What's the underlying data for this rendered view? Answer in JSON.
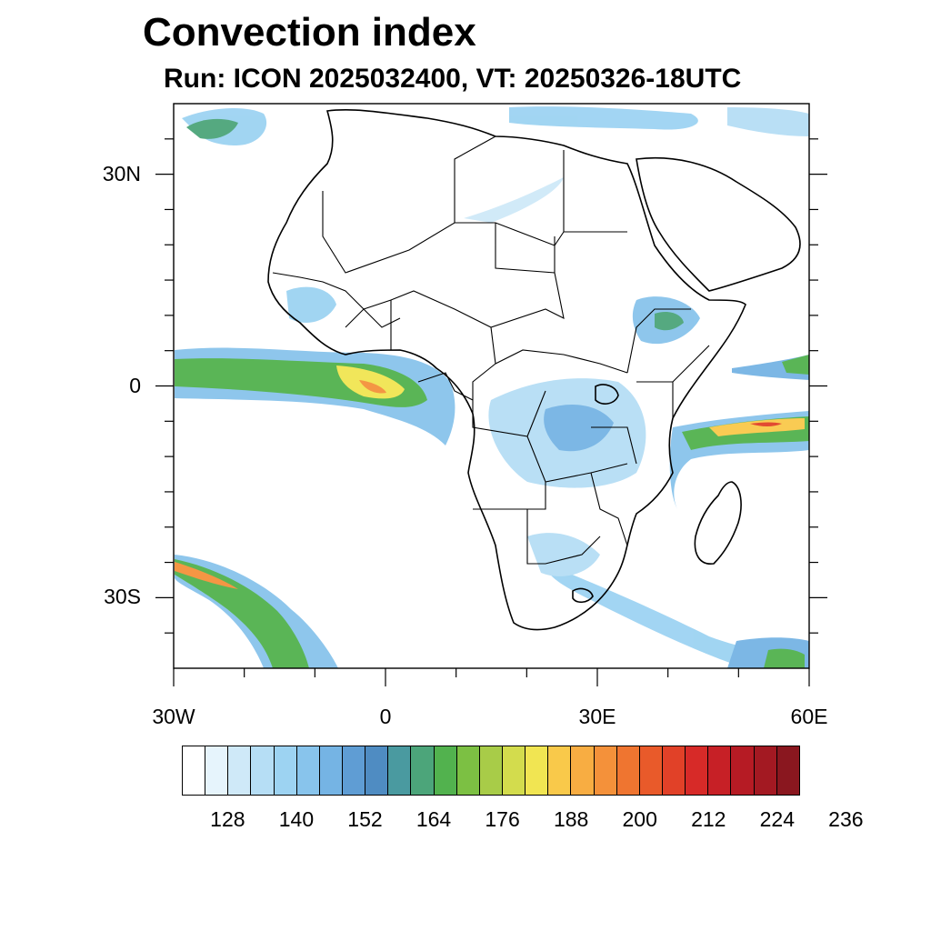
{
  "title": "Convection index",
  "subtitle": "Run: ICON 2025032400,  VT: 20250326-18UTC",
  "map": {
    "lon_range": [
      -30,
      60
    ],
    "lat_range": [
      -40,
      40
    ],
    "lat_labels": [
      {
        "lat": 30,
        "text": "30N"
      },
      {
        "lat": 0,
        "text": "0"
      },
      {
        "lat": -30,
        "text": "30S"
      }
    ],
    "lon_labels": [
      {
        "lon": -30,
        "text": "30W"
      },
      {
        "lon": 0,
        "text": "0"
      },
      {
        "lon": 30,
        "text": "30E"
      },
      {
        "lon": 60,
        "text": "60E"
      }
    ],
    "minor_lat_ticks": [
      35,
      25,
      20,
      15,
      10,
      5,
      -5,
      -10,
      -15,
      -20,
      -25,
      -35
    ],
    "minor_lon_ticks": [
      -20,
      -10,
      10,
      20,
      40,
      50
    ]
  },
  "colorbar": {
    "colors": [
      "#ffffff",
      "#e6f4fc",
      "#cfe9f8",
      "#b6def5",
      "#9dd3f2",
      "#88c4ec",
      "#75b4e4",
      "#5f9dd4",
      "#4f8cc2",
      "#4a9aa0",
      "#4ca57a",
      "#52b24e",
      "#7cc043",
      "#a8cc48",
      "#d3dc4d",
      "#f1e552",
      "#f9c94a",
      "#f8ad42",
      "#f4913a",
      "#ef7530",
      "#e95a2a",
      "#e14128",
      "#d72a28",
      "#c72026",
      "#b61b24",
      "#a31922",
      "#8a171f"
    ],
    "tick_labels": [
      "128",
      "140",
      "152",
      "164",
      "176",
      "188",
      "200",
      "212",
      "224",
      "236"
    ]
  }
}
